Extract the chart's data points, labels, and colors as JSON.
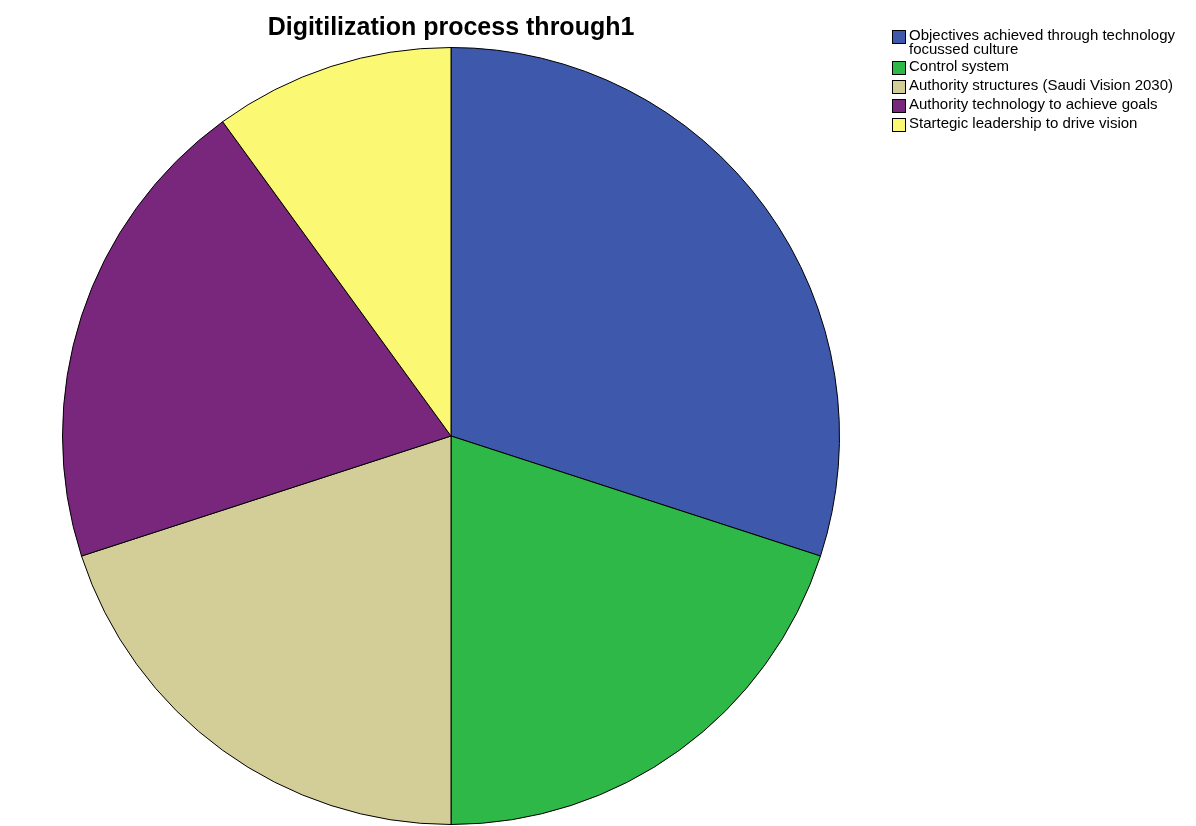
{
  "chart_data": {
    "type": "pie",
    "title": "Digitilization process through1",
    "categories": [
      "Objectives achieved through technology focussed culture",
      "Control system",
      "Authority structures (Saudi Vision 2030)",
      "Authority technology to achieve goals",
      "Startegic leadership to drive vision"
    ],
    "values": [
      30,
      20,
      20,
      20,
      10
    ],
    "colors": [
      "#3e58ac",
      "#2eb848",
      "#d3ce97",
      "#79277c",
      "#fbf873"
    ],
    "legend": "top right"
  }
}
